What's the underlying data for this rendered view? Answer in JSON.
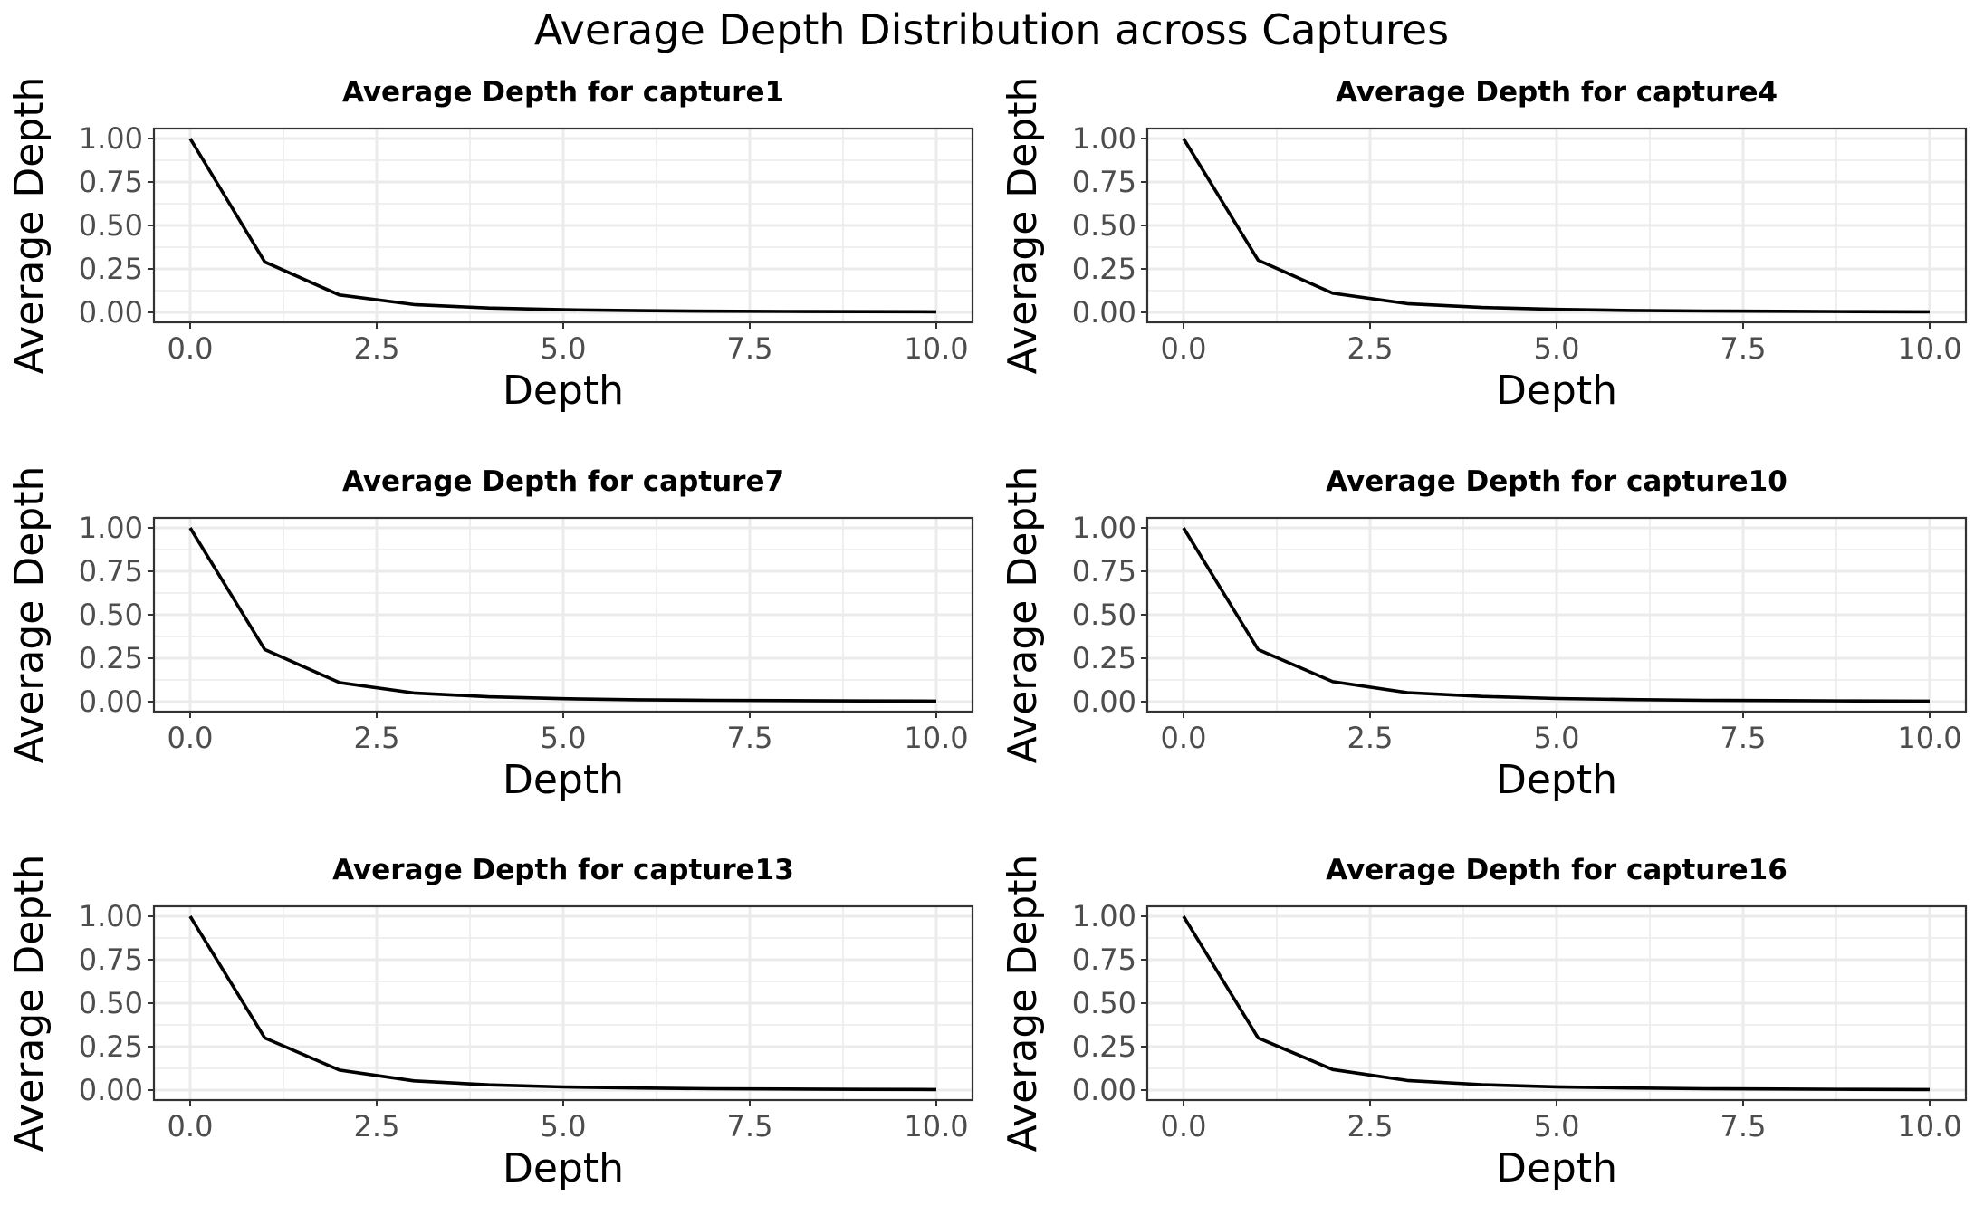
{
  "figure_title": "Average Depth Distribution across Captures",
  "colors": {
    "line": "#000000",
    "grid": "#ebebeb",
    "frame": "#333333",
    "tick_text": "#4d4d4d",
    "background": "#ffffff"
  },
  "chart_data": [
    {
      "type": "line",
      "title": "Average Depth for capture1",
      "xlabel": "Depth",
      "ylabel": "Average Depth",
      "xlim": [
        0,
        10
      ],
      "ylim": [
        0,
        1
      ],
      "xticks": [
        "0.0",
        "2.5",
        "5.0",
        "7.5",
        "10.0"
      ],
      "yticks": [
        "0.00",
        "0.25",
        "0.50",
        "0.75",
        "1.00"
      ],
      "x": [
        0,
        1,
        2,
        3,
        4,
        5,
        6,
        7,
        8,
        9,
        10
      ],
      "y": [
        1.0,
        0.29,
        0.1,
        0.045,
        0.025,
        0.015,
        0.01,
        0.007,
        0.005,
        0.004,
        0.003
      ]
    },
    {
      "type": "line",
      "title": "Average Depth for capture4",
      "xlabel": "Depth",
      "ylabel": "Average Depth",
      "xlim": [
        0,
        10
      ],
      "ylim": [
        0,
        1
      ],
      "xticks": [
        "0.0",
        "2.5",
        "5.0",
        "7.5",
        "10.0"
      ],
      "yticks": [
        "0.00",
        "0.25",
        "0.50",
        "0.75",
        "1.00"
      ],
      "x": [
        0,
        1,
        2,
        3,
        4,
        5,
        6,
        7,
        8,
        9,
        10
      ],
      "y": [
        1.0,
        0.3,
        0.11,
        0.05,
        0.028,
        0.017,
        0.011,
        0.008,
        0.006,
        0.004,
        0.003
      ]
    },
    {
      "type": "line",
      "title": "Average Depth for capture7",
      "xlabel": "Depth",
      "ylabel": "Average Depth",
      "xlim": [
        0,
        10
      ],
      "ylim": [
        0,
        1
      ],
      "xticks": [
        "0.0",
        "2.5",
        "5.0",
        "7.5",
        "10.0"
      ],
      "yticks": [
        "0.00",
        "0.25",
        "0.50",
        "0.75",
        "1.00"
      ],
      "x": [
        0,
        1,
        2,
        3,
        4,
        5,
        6,
        7,
        8,
        9,
        10
      ],
      "y": [
        1.0,
        0.3,
        0.11,
        0.05,
        0.028,
        0.017,
        0.011,
        0.008,
        0.006,
        0.004,
        0.003
      ]
    },
    {
      "type": "line",
      "title": "Average Depth for capture10",
      "xlabel": "Depth",
      "ylabel": "Average Depth",
      "xlim": [
        0,
        10
      ],
      "ylim": [
        0,
        1
      ],
      "xticks": [
        "0.0",
        "2.5",
        "5.0",
        "7.5",
        "10.0"
      ],
      "yticks": [
        "0.00",
        "0.25",
        "0.50",
        "0.75",
        "1.00"
      ],
      "x": [
        0,
        1,
        2,
        3,
        4,
        5,
        6,
        7,
        8,
        9,
        10
      ],
      "y": [
        1.0,
        0.3,
        0.115,
        0.052,
        0.03,
        0.018,
        0.012,
        0.008,
        0.006,
        0.004,
        0.003
      ]
    },
    {
      "type": "line",
      "title": "Average Depth for capture13",
      "xlabel": "Depth",
      "ylabel": "Average Depth",
      "xlim": [
        0,
        10
      ],
      "ylim": [
        0,
        1
      ],
      "xticks": [
        "0.0",
        "2.5",
        "5.0",
        "7.5",
        "10.0"
      ],
      "yticks": [
        "0.00",
        "0.25",
        "0.50",
        "0.75",
        "1.00"
      ],
      "x": [
        0,
        1,
        2,
        3,
        4,
        5,
        6,
        7,
        8,
        9,
        10
      ],
      "y": [
        1.0,
        0.3,
        0.115,
        0.053,
        0.03,
        0.018,
        0.012,
        0.008,
        0.006,
        0.004,
        0.003
      ]
    },
    {
      "type": "line",
      "title": "Average Depth for capture16",
      "xlabel": "Depth",
      "ylabel": "Average Depth",
      "xlim": [
        0,
        10
      ],
      "ylim": [
        0,
        1
      ],
      "xticks": [
        "0.0",
        "2.5",
        "5.0",
        "7.5",
        "10.0"
      ],
      "yticks": [
        "0.00",
        "0.25",
        "0.50",
        "0.75",
        "1.00"
      ],
      "x": [
        0,
        1,
        2,
        3,
        4,
        5,
        6,
        7,
        8,
        9,
        10
      ],
      "y": [
        1.0,
        0.3,
        0.118,
        0.055,
        0.031,
        0.019,
        0.012,
        0.008,
        0.006,
        0.004,
        0.003
      ]
    }
  ]
}
